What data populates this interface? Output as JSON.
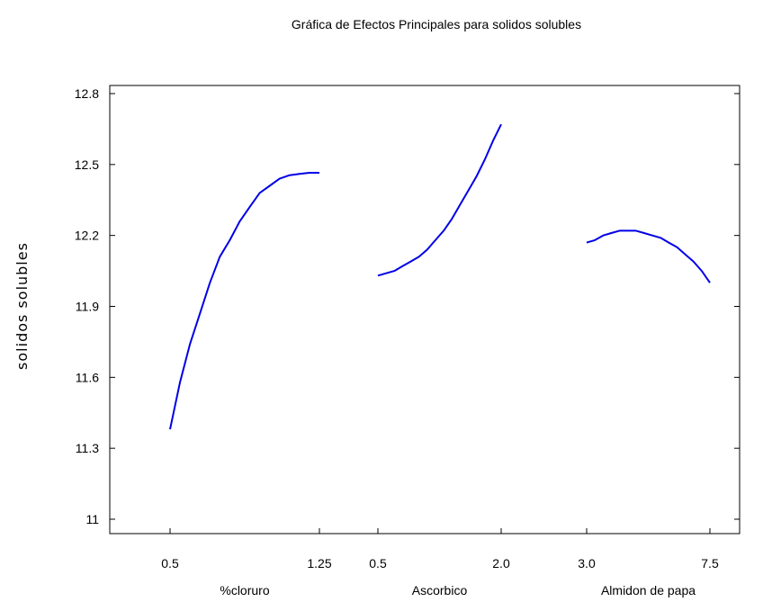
{
  "chart_data": {
    "type": "line",
    "title": "Gráfica de Efectos Principales para solidos solubles",
    "ylabel": "solidos solubles",
    "ylim": [
      11,
      12.8
    ],
    "yticks": [
      "11",
      "11.3",
      "11.6",
      "11.9",
      "12.2",
      "12.5",
      "12.8"
    ],
    "line_color": "#0000e6",
    "panels": [
      {
        "name": "%cloruro",
        "xlabel": "%cloruro",
        "xticks": [
          "0.5",
          "1.25"
        ],
        "xrange": [
          0.5,
          1.25
        ],
        "x": [
          0.5,
          0.55,
          0.6,
          0.65,
          0.7,
          0.75,
          0.8,
          0.85,
          0.9,
          0.95,
          1.0,
          1.05,
          1.1,
          1.15,
          1.2,
          1.25
        ],
        "y": [
          11.38,
          11.58,
          11.74,
          11.87,
          12.0,
          12.11,
          12.18,
          12.26,
          12.32,
          12.38,
          12.41,
          12.44,
          12.455,
          12.46,
          12.465,
          12.465
        ]
      },
      {
        "name": "Ascorbico",
        "xlabel": "Ascorbico",
        "xticks": [
          "0.5",
          "2.0"
        ],
        "xrange": [
          0.5,
          2.0
        ],
        "x": [
          0.5,
          0.6,
          0.7,
          0.8,
          0.9,
          1.0,
          1.1,
          1.2,
          1.3,
          1.4,
          1.5,
          1.6,
          1.7,
          1.8,
          1.9,
          2.0
        ],
        "y": [
          12.03,
          12.04,
          12.05,
          12.07,
          12.09,
          12.11,
          12.14,
          12.18,
          12.22,
          12.27,
          12.33,
          12.39,
          12.45,
          12.52,
          12.6,
          12.67
        ]
      },
      {
        "name": "Almidon de papa",
        "xlabel": "Almidon de papa",
        "xticks": [
          "3.0",
          "7.5"
        ],
        "xrange": [
          3.0,
          7.5
        ],
        "x": [
          3.0,
          3.3,
          3.6,
          3.9,
          4.2,
          4.5,
          4.8,
          5.1,
          5.4,
          5.7,
          6.0,
          6.3,
          6.6,
          6.9,
          7.2,
          7.5
        ],
        "y": [
          12.17,
          12.18,
          12.2,
          12.21,
          12.22,
          12.22,
          12.22,
          12.21,
          12.2,
          12.19,
          12.17,
          12.15,
          12.12,
          12.09,
          12.05,
          12.0
        ]
      }
    ]
  }
}
